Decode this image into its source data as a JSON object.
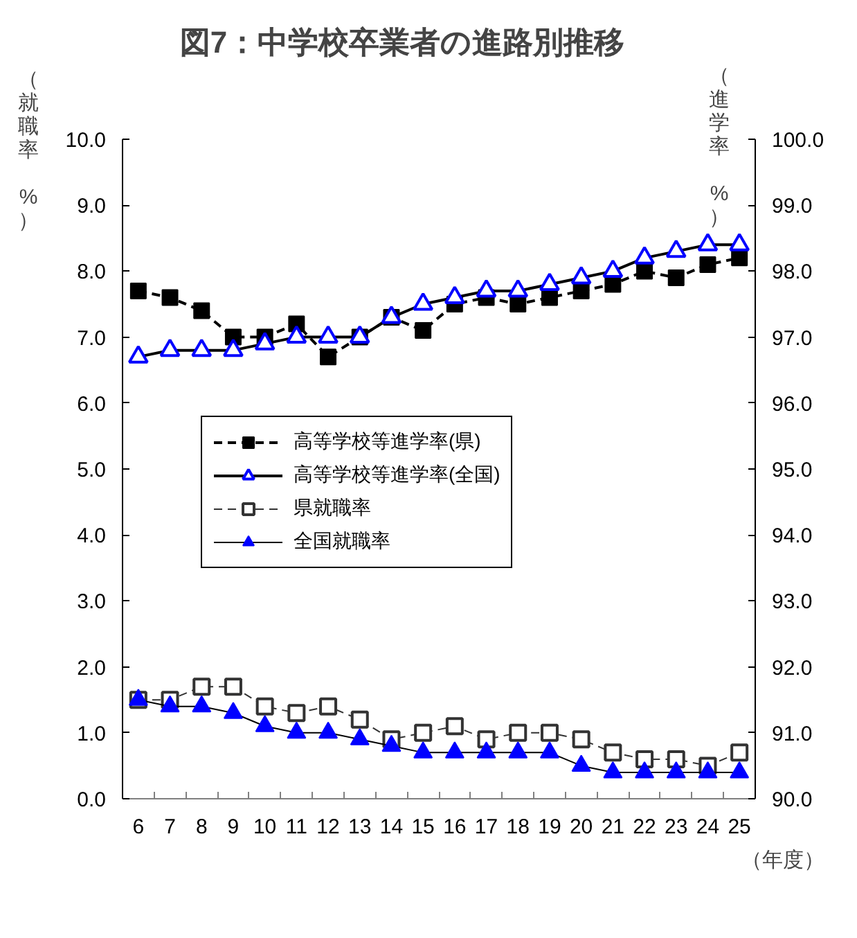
{
  "chart_data": {
    "type": "line",
    "title": "図7：中学校卒業者の進路別推移",
    "xlabel": "（年度）",
    "ylabel": "（就職率 %）",
    "y2label": "（進学率 %）",
    "categories": [
      "6",
      "7",
      "8",
      "9",
      "10",
      "11",
      "12",
      "13",
      "14",
      "15",
      "16",
      "17",
      "18",
      "19",
      "20",
      "21",
      "22",
      "23",
      "24",
      "25"
    ],
    "series": [
      {
        "name": "高等学校等進学率(県)",
        "axis": "y2",
        "color": "#000000",
        "colors": [
          "#000000",
          "#000000",
          "#000000",
          "#000000",
          "#000000",
          "#000000",
          "#000000",
          "#000000",
          "#000000",
          "#000000",
          "#000000",
          "#000000",
          "#000000",
          "#000000",
          "#000000",
          "#000000",
          "#000000",
          "#000000",
          "#000000",
          "#000000"
        ],
        "marker": "square",
        "line_style": "dashed",
        "values": [
          97.7,
          97.6,
          97.4,
          97.0,
          97.0,
          97.2,
          96.7,
          97.0,
          97.3,
          97.1,
          97.5,
          97.6,
          97.5,
          97.6,
          97.7,
          97.8,
          98.0,
          97.9,
          98.1,
          98.2
        ]
      },
      {
        "name": "高等学校等進学率(全国)",
        "axis": "y2",
        "color": "#000000",
        "colors": [
          "#0000ff",
          "#0000ff",
          "#0000ff",
          "#0000ff",
          "#0000ff",
          "#0000ff",
          "#0000ff",
          "#0000ff",
          "#0000ff",
          "#0000ff",
          "#0000ff",
          "#0000ff",
          "#0000ff",
          "#0000ff",
          "#0000ff",
          "#0000ff",
          "#0000ff",
          "#0000ff",
          "#0000ff",
          "#0000ff"
        ],
        "marker": "triangle-open",
        "line_style": "solid",
        "values": [
          96.7,
          96.8,
          96.8,
          96.8,
          96.9,
          97.0,
          97.0,
          97.0,
          97.3,
          97.5,
          97.6,
          97.7,
          97.7,
          97.8,
          97.9,
          98.0,
          98.2,
          98.3,
          98.4,
          98.4
        ]
      },
      {
        "name": "県就職率",
        "axis": "y",
        "color": "#333333",
        "colors": [
          "#333333",
          "#333333",
          "#333333",
          "#333333",
          "#333333",
          "#333333",
          "#333333",
          "#333333",
          "#333333",
          "#333333",
          "#333333",
          "#333333",
          "#333333",
          "#333333",
          "#333333",
          "#333333",
          "#333333",
          "#333333",
          "#333333",
          "#333333"
        ],
        "marker": "square-open",
        "line_style": "dashed",
        "values": [
          1.5,
          1.5,
          1.7,
          1.7,
          1.4,
          1.3,
          1.4,
          1.2,
          0.9,
          1.0,
          1.1,
          0.9,
          1.0,
          1.0,
          0.9,
          0.7,
          0.6,
          0.6,
          0.5,
          0.7
        ]
      },
      {
        "name": "全国就職率",
        "axis": "y",
        "color": "#000000",
        "colors": [
          "#0000ff",
          "#0000ff",
          "#0000ff",
          "#0000ff",
          "#0000ff",
          "#0000ff",
          "#0000ff",
          "#0000ff",
          "#0000ff",
          "#0000ff",
          "#0000ff",
          "#0000ff",
          "#0000ff",
          "#0000ff",
          "#0000ff",
          "#0000ff",
          "#0000ff",
          "#0000ff",
          "#0000ff",
          "#0000ff"
        ],
        "marker": "triangle",
        "line_style": "solid",
        "values": [
          1.5,
          1.4,
          1.4,
          1.3,
          1.1,
          1.0,
          1.0,
          0.9,
          0.8,
          0.7,
          0.7,
          0.7,
          0.7,
          0.7,
          0.5,
          0.4,
          0.4,
          0.4,
          0.4,
          0.4
        ]
      }
    ],
    "ylim": [
      0,
      10
    ],
    "yticks": [
      {
        "value": 0,
        "label": "0.0"
      },
      {
        "value": 1,
        "label": "1.0"
      },
      {
        "value": 2,
        "label": "2.0"
      },
      {
        "value": 3,
        "label": "3.0"
      },
      {
        "value": 4,
        "label": "4.0"
      },
      {
        "value": 5,
        "label": "5.0"
      },
      {
        "value": 6,
        "label": "6.0"
      },
      {
        "value": 7,
        "label": "7.0"
      },
      {
        "value": 8,
        "label": "8.0"
      },
      {
        "value": 9,
        "label": "9.0"
      },
      {
        "value": 10,
        "label": "10.0"
      }
    ],
    "y2lim": [
      90,
      100
    ],
    "y2ticks": [
      {
        "value": 90,
        "label": "90.0"
      },
      {
        "value": 91,
        "label": "91.0"
      },
      {
        "value": 92,
        "label": "92.0"
      },
      {
        "value": 93,
        "label": "93.0"
      },
      {
        "value": 94,
        "label": "94.0"
      },
      {
        "value": 95,
        "label": "95.0"
      },
      {
        "value": 96,
        "label": "96.0"
      },
      {
        "value": 97,
        "label": "97.0"
      },
      {
        "value": 98,
        "label": "98.0"
      },
      {
        "value": 99,
        "label": "99.0"
      },
      {
        "value": 100,
        "label": "100.0"
      }
    ],
    "grid": false,
    "legend": "center"
  }
}
